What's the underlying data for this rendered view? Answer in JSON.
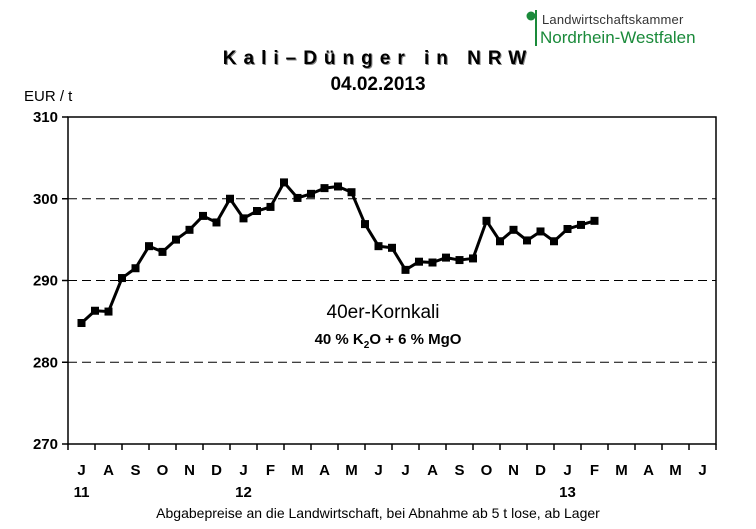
{
  "logo": {
    "line1": "Landwirtschaftskammer",
    "line2": "Nordrhein-Westfalen",
    "color": "#1a8a3a"
  },
  "chart_data": {
    "type": "line",
    "title": "Kali–Dünger in NRW",
    "subtitle": "04.02.2013",
    "ylabel": "EUR / t",
    "xlabel": "Abgabepreise an die Landwirtschaft, bei Abnahme ab 5 t lose, ab Lager",
    "ylim": [
      270,
      310
    ],
    "yticks": [
      270,
      280,
      290,
      300,
      310
    ],
    "dashed_gridlines": [
      280,
      290,
      300
    ],
    "x_months": [
      "J",
      "A",
      "S",
      "O",
      "N",
      "D",
      "J",
      "F",
      "M",
      "A",
      "M",
      "J",
      "J",
      "A",
      "S",
      "O",
      "N",
      "D",
      "J",
      "F",
      "M",
      "A",
      "M",
      "J"
    ],
    "x_years": [
      {
        "label": "11",
        "month_index": 0
      },
      {
        "label": "12",
        "month_index": 6
      },
      {
        "label": "13",
        "month_index": 18
      }
    ],
    "series": [
      {
        "annotation": "40er-Kornkali",
        "annotation_formula": {
          "pre": "40 %  K",
          "sub": "2",
          "post": "O + 6 % MgO"
        },
        "points": [
          [
            0.0,
            284.8
          ],
          [
            0.5,
            286.3
          ],
          [
            1.0,
            286.2
          ],
          [
            1.5,
            290.3
          ],
          [
            2.0,
            291.5
          ],
          [
            2.5,
            294.2
          ],
          [
            3.0,
            293.5
          ],
          [
            3.5,
            295.0
          ],
          [
            4.0,
            296.2
          ],
          [
            4.5,
            297.9
          ],
          [
            5.0,
            297.1
          ],
          [
            5.5,
            300.0
          ],
          [
            6.0,
            297.6
          ],
          [
            6.5,
            298.5
          ],
          [
            7.0,
            299.0
          ],
          [
            7.5,
            302.0
          ],
          [
            8.0,
            300.1
          ],
          [
            8.5,
            300.6
          ],
          [
            9.0,
            301.3
          ],
          [
            9.5,
            301.5
          ],
          [
            10.0,
            300.8
          ],
          [
            10.5,
            296.9
          ],
          [
            11.0,
            294.2
          ],
          [
            11.5,
            294.0
          ],
          [
            12.0,
            291.3
          ],
          [
            12.5,
            292.3
          ],
          [
            13.0,
            292.2
          ],
          [
            13.5,
            292.8
          ],
          [
            14.0,
            292.5
          ],
          [
            14.5,
            292.7
          ],
          [
            15.0,
            297.3
          ],
          [
            15.5,
            294.8
          ],
          [
            16.0,
            296.2
          ],
          [
            16.5,
            294.9
          ],
          [
            17.0,
            296.0
          ],
          [
            17.5,
            294.8
          ],
          [
            18.0,
            296.3
          ],
          [
            18.5,
            296.8
          ],
          [
            19.0,
            297.3
          ]
        ]
      }
    ]
  }
}
